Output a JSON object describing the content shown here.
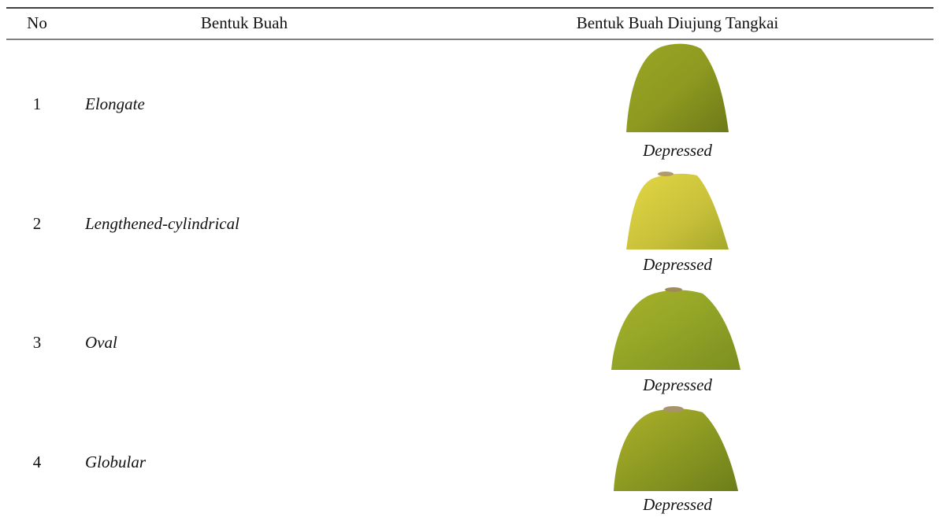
{
  "table": {
    "headers": [
      "No",
      "Bentuk Buah",
      "Bentuk Buah Diujung Tangkai"
    ],
    "rows": [
      [
        "1",
        "Elongate",
        "Depressed"
      ],
      [
        "2",
        "Lengthened-cylindrical",
        "Depressed"
      ],
      [
        "3",
        "Oval",
        "Depressed"
      ],
      [
        "4",
        "Globular",
        "Depressed"
      ]
    ]
  }
}
